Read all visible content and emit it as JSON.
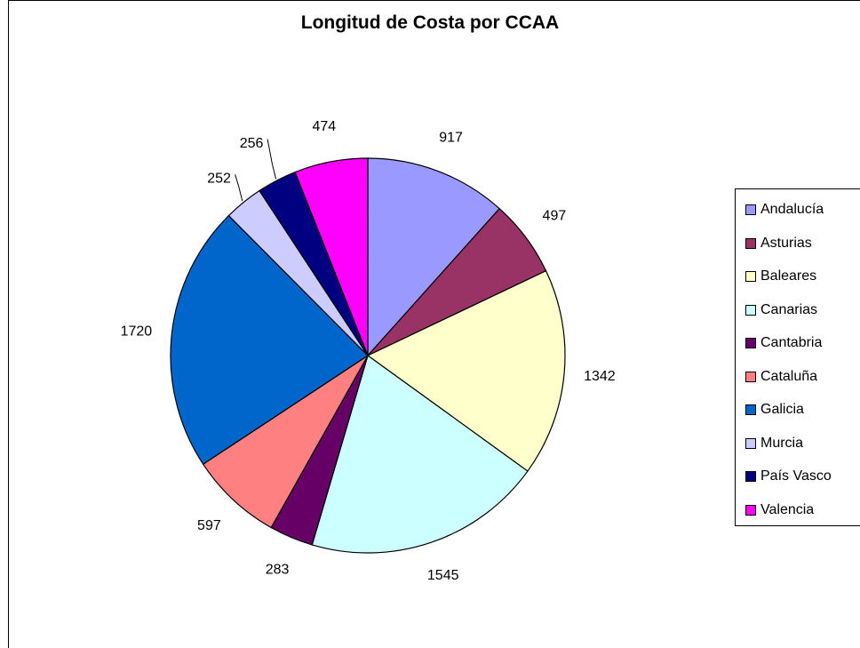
{
  "chart_data": {
    "type": "pie",
    "title": "Longitud de Costa por CCAA",
    "slices": [
      {
        "label": "Andalucía",
        "value": 917,
        "color": "#9999FF"
      },
      {
        "label": "Asturias",
        "value": 497,
        "color": "#993366"
      },
      {
        "label": "Baleares",
        "value": 1342,
        "color": "#FFFFCC"
      },
      {
        "label": "Canarias",
        "value": 1545,
        "color": "#CCFFFF"
      },
      {
        "label": "Cantabria",
        "value": 283,
        "color": "#660066"
      },
      {
        "label": "Cataluña",
        "value": 597,
        "color": "#FF8080"
      },
      {
        "label": "Galicia",
        "value": 1720,
        "color": "#0066CC"
      },
      {
        "label": "Murcia",
        "value": 252,
        "color": "#CCCCFF"
      },
      {
        "label": "País Vasco",
        "value": 256,
        "color": "#000080"
      },
      {
        "label": "Valencia",
        "value": 474,
        "color": "#FF00FF"
      }
    ],
    "legend_position": "right"
  }
}
